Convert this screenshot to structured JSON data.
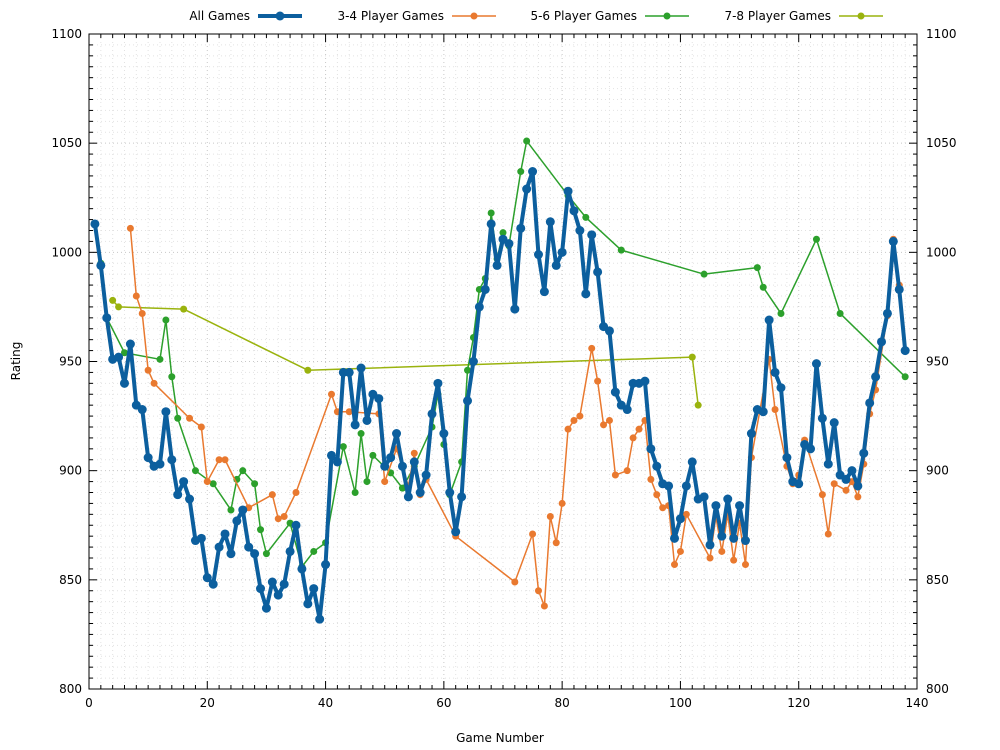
{
  "chart_data": {
    "type": "line",
    "xlabel": "Game Number",
    "ylabel": "Rating",
    "xlim": [
      0,
      140
    ],
    "ylim": [
      800,
      1100
    ],
    "x_ticks": [
      0,
      20,
      40,
      60,
      80,
      100,
      120,
      140
    ],
    "y_ticks": [
      800,
      850,
      900,
      950,
      1000,
      1050,
      1100
    ],
    "grid": "dotted",
    "legend_position": "top",
    "series": [
      {
        "name": "All Games",
        "color": "#0c5f9e",
        "points": [
          [
            1,
            1013
          ],
          [
            2,
            994
          ],
          [
            3,
            970
          ],
          [
            4,
            951
          ],
          [
            5,
            952
          ],
          [
            6,
            940
          ],
          [
            7,
            958
          ],
          [
            8,
            930
          ],
          [
            9,
            928
          ],
          [
            10,
            906
          ],
          [
            11,
            902
          ],
          [
            12,
            903
          ],
          [
            13,
            927
          ],
          [
            14,
            905
          ],
          [
            15,
            889
          ],
          [
            16,
            895
          ],
          [
            17,
            887
          ],
          [
            18,
            868
          ],
          [
            19,
            869
          ],
          [
            20,
            851
          ],
          [
            21,
            848
          ],
          [
            22,
            865
          ],
          [
            23,
            871
          ],
          [
            24,
            862
          ],
          [
            25,
            877
          ],
          [
            26,
            882
          ],
          [
            27,
            865
          ],
          [
            28,
            862
          ],
          [
            29,
            846
          ],
          [
            30,
            837
          ],
          [
            31,
            849
          ],
          [
            32,
            843
          ],
          [
            33,
            848
          ],
          [
            34,
            863
          ],
          [
            35,
            875
          ],
          [
            36,
            855
          ],
          [
            37,
            839
          ],
          [
            38,
            846
          ],
          [
            39,
            832
          ],
          [
            40,
            857
          ],
          [
            41,
            907
          ],
          [
            42,
            904
          ],
          [
            43,
            945
          ],
          [
            44,
            945
          ],
          [
            45,
            921
          ],
          [
            46,
            947
          ],
          [
            47,
            923
          ],
          [
            48,
            935
          ],
          [
            49,
            933
          ],
          [
            50,
            902
          ],
          [
            51,
            906
          ],
          [
            52,
            917
          ],
          [
            53,
            902
          ],
          [
            54,
            888
          ],
          [
            55,
            904
          ],
          [
            56,
            890
          ],
          [
            57,
            898
          ],
          [
            58,
            926
          ],
          [
            59,
            940
          ],
          [
            60,
            917
          ],
          [
            61,
            890
          ],
          [
            62,
            872
          ],
          [
            63,
            888
          ],
          [
            64,
            932
          ],
          [
            65,
            950
          ],
          [
            66,
            975
          ],
          [
            67,
            983
          ],
          [
            68,
            1013
          ],
          [
            69,
            994
          ],
          [
            70,
            1006
          ],
          [
            71,
            1004
          ],
          [
            72,
            974
          ],
          [
            73,
            1011
          ],
          [
            74,
            1029
          ],
          [
            75,
            1037
          ],
          [
            76,
            999
          ],
          [
            77,
            982
          ],
          [
            78,
            1014
          ],
          [
            79,
            994
          ],
          [
            80,
            1000
          ],
          [
            81,
            1028
          ],
          [
            82,
            1019
          ],
          [
            83,
            1010
          ],
          [
            84,
            981
          ],
          [
            85,
            1008
          ],
          [
            86,
            991
          ],
          [
            87,
            966
          ],
          [
            88,
            964
          ],
          [
            89,
            936
          ],
          [
            90,
            930
          ],
          [
            91,
            928
          ],
          [
            92,
            940
          ],
          [
            93,
            940
          ],
          [
            94,
            941
          ],
          [
            95,
            910
          ],
          [
            96,
            902
          ],
          [
            97,
            894
          ],
          [
            98,
            893
          ],
          [
            99,
            869
          ],
          [
            100,
            878
          ],
          [
            101,
            893
          ],
          [
            102,
            904
          ],
          [
            103,
            887
          ],
          [
            104,
            888
          ],
          [
            105,
            866
          ],
          [
            106,
            884
          ],
          [
            107,
            870
          ],
          [
            108,
            887
          ],
          [
            109,
            869
          ],
          [
            110,
            884
          ],
          [
            111,
            868
          ],
          [
            112,
            917
          ],
          [
            113,
            928
          ],
          [
            114,
            927
          ],
          [
            115,
            969
          ],
          [
            116,
            945
          ],
          [
            117,
            938
          ],
          [
            118,
            906
          ],
          [
            119,
            895
          ],
          [
            120,
            894
          ],
          [
            121,
            912
          ],
          [
            122,
            910
          ],
          [
            123,
            949
          ],
          [
            124,
            924
          ],
          [
            125,
            903
          ],
          [
            126,
            922
          ],
          [
            127,
            898
          ],
          [
            128,
            896
          ],
          [
            129,
            900
          ],
          [
            130,
            893
          ],
          [
            131,
            908
          ],
          [
            132,
            931
          ],
          [
            133,
            943
          ],
          [
            134,
            959
          ],
          [
            135,
            972
          ],
          [
            136,
            1005
          ],
          [
            137,
            983
          ],
          [
            138,
            955
          ]
        ]
      },
      {
        "name": "3-4 Player Games",
        "color": "#e9792f",
        "points": [
          [
            7,
            1011
          ],
          [
            8,
            980
          ],
          [
            9,
            972
          ],
          [
            10,
            946
          ],
          [
            11,
            940
          ],
          [
            17,
            924
          ],
          [
            19,
            920
          ],
          [
            20,
            895
          ],
          [
            22,
            905
          ],
          [
            23,
            905
          ],
          [
            27,
            883
          ],
          [
            31,
            889
          ],
          [
            32,
            878
          ],
          [
            33,
            879
          ],
          [
            35,
            890
          ],
          [
            41,
            935
          ],
          [
            42,
            927
          ],
          [
            44,
            927
          ],
          [
            49,
            926
          ],
          [
            50,
            895
          ],
          [
            52,
            910
          ],
          [
            54,
            893
          ],
          [
            55,
            908
          ],
          [
            56,
            889
          ],
          [
            57,
            896
          ],
          [
            62,
            870
          ],
          [
            72,
            849
          ],
          [
            75,
            871
          ],
          [
            76,
            845
          ],
          [
            77,
            838
          ],
          [
            78,
            879
          ],
          [
            79,
            867
          ],
          [
            80,
            885
          ],
          [
            81,
            919
          ],
          [
            82,
            923
          ],
          [
            83,
            925
          ],
          [
            85,
            956
          ],
          [
            86,
            941
          ],
          [
            87,
            921
          ],
          [
            88,
            923
          ],
          [
            89,
            898
          ],
          [
            91,
            900
          ],
          [
            92,
            915
          ],
          [
            93,
            919
          ],
          [
            94,
            923
          ],
          [
            95,
            896
          ],
          [
            96,
            889
          ],
          [
            97,
            883
          ],
          [
            98,
            884
          ],
          [
            99,
            857
          ],
          [
            100,
            863
          ],
          [
            101,
            880
          ],
          [
            105,
            860
          ],
          [
            106,
            879
          ],
          [
            107,
            863
          ],
          [
            108,
            880
          ],
          [
            109,
            859
          ],
          [
            110,
            876
          ],
          [
            111,
            857
          ],
          [
            112,
            906
          ],
          [
            115,
            951
          ],
          [
            116,
            928
          ],
          [
            118,
            902
          ],
          [
            119,
            894
          ],
          [
            120,
            898
          ],
          [
            121,
            914
          ],
          [
            124,
            889
          ],
          [
            125,
            871
          ],
          [
            126,
            894
          ],
          [
            128,
            891
          ],
          [
            129,
            895
          ],
          [
            130,
            888
          ],
          [
            131,
            903
          ],
          [
            132,
            926
          ],
          [
            133,
            937
          ],
          [
            135,
            971
          ],
          [
            136,
            1006
          ],
          [
            137,
            985
          ]
        ]
      },
      {
        "name": "5-6 Player Games",
        "color": "#2ca02c",
        "points": [
          [
            1,
            1013
          ],
          [
            2,
            995
          ],
          [
            3,
            970
          ],
          [
            6,
            954
          ],
          [
            12,
            951
          ],
          [
            13,
            969
          ],
          [
            14,
            943
          ],
          [
            15,
            924
          ],
          [
            18,
            900
          ],
          [
            21,
            894
          ],
          [
            24,
            882
          ],
          [
            25,
            896
          ],
          [
            26,
            900
          ],
          [
            28,
            894
          ],
          [
            29,
            873
          ],
          [
            30,
            862
          ],
          [
            34,
            876
          ],
          [
            36,
            856
          ],
          [
            38,
            863
          ],
          [
            40,
            867
          ],
          [
            43,
            911
          ],
          [
            45,
            890
          ],
          [
            46,
            917
          ],
          [
            47,
            895
          ],
          [
            48,
            907
          ],
          [
            51,
            899
          ],
          [
            53,
            892
          ],
          [
            55,
            902
          ],
          [
            58,
            920
          ],
          [
            59,
            935
          ],
          [
            60,
            912
          ],
          [
            61,
            889
          ],
          [
            63,
            904
          ],
          [
            64,
            946
          ],
          [
            65,
            961
          ],
          [
            66,
            983
          ],
          [
            67,
            988
          ],
          [
            68,
            1018
          ],
          [
            69,
            997
          ],
          [
            70,
            1009
          ],
          [
            71,
            1003
          ],
          [
            73,
            1037
          ],
          [
            74,
            1051
          ],
          [
            81,
            1026
          ],
          [
            84,
            1016
          ],
          [
            90,
            1001
          ],
          [
            104,
            990
          ],
          [
            113,
            993
          ],
          [
            114,
            984
          ],
          [
            117,
            972
          ],
          [
            123,
            1006
          ],
          [
            127,
            972
          ],
          [
            138,
            943
          ]
        ]
      },
      {
        "name": "7-8 Player Games",
        "color": "#9ab30e",
        "points": [
          [
            4,
            978
          ],
          [
            5,
            975
          ],
          [
            16,
            974
          ],
          [
            37,
            946
          ],
          [
            102,
            952
          ],
          [
            103,
            930
          ]
        ]
      }
    ]
  }
}
